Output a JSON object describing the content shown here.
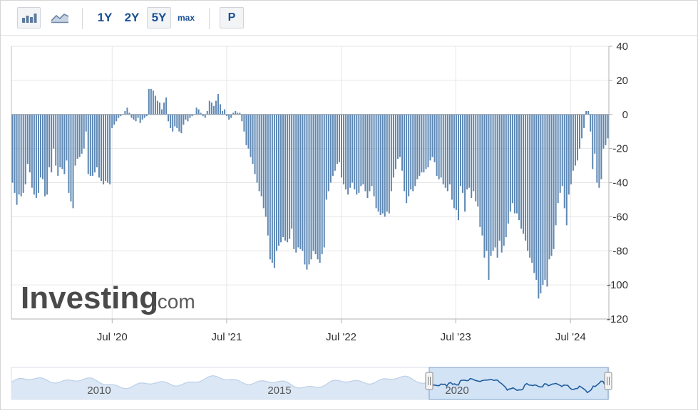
{
  "toolbar": {
    "icons": [
      "bar-chart-icon",
      "area-chart-icon"
    ],
    "ranges": [
      "1Y",
      "2Y",
      "5Y",
      "max"
    ],
    "selected_range": "5Y",
    "period_button": "P"
  },
  "chart_data": {
    "type": "bar",
    "title": "",
    "xlabel": "",
    "ylabel": "",
    "ylim": [
      -120,
      40
    ],
    "y_ticks": [
      40,
      20,
      0,
      -20,
      -40,
      -60,
      -80,
      -100,
      -120
    ],
    "y_axis_position": "right",
    "grid": true,
    "bar_color": "#5d87b3",
    "x_start": "2019-08-15",
    "x_end": "2024-10-31",
    "x_tick_dates": [
      "2020-07-01",
      "2021-07-01",
      "2022-07-01",
      "2023-07-01",
      "2024-07-01"
    ],
    "x_tick_labels": [
      "Jul '20",
      "Jul '21",
      "Jul '22",
      "Jul '23",
      "Jul '24"
    ],
    "values": [
      -40,
      -46,
      -53,
      -47,
      -48,
      -46,
      -41,
      -29,
      -34,
      -43,
      -47,
      -49,
      -46,
      -37,
      -38,
      -48,
      -47,
      -31,
      -34,
      -20,
      -30,
      -36,
      -31,
      -32,
      -35,
      -27,
      -46,
      -51,
      -55,
      -30,
      -26,
      -25,
      -23,
      -20,
      -10,
      -35,
      -36,
      -36,
      -34,
      -31,
      -37,
      -39,
      -41,
      -39,
      -40,
      -41,
      -8,
      -6,
      -4,
      -2,
      -1,
      0,
      2,
      4,
      1,
      -2,
      -3,
      -4,
      -2,
      -5,
      -3,
      -2,
      -1,
      15,
      15,
      14,
      11,
      8,
      7,
      3,
      7,
      10,
      -4,
      -8,
      -10,
      -7,
      -8,
      -10,
      -11,
      -6,
      -3,
      -4,
      -2,
      -1,
      0,
      4,
      3,
      1,
      -1,
      -2,
      2,
      8,
      7,
      5,
      8,
      12,
      6,
      2,
      3,
      -1,
      -3,
      -2,
      1,
      2,
      1,
      1,
      -4,
      -10,
      -18,
      -20,
      -25,
      -29,
      -35,
      -40,
      -45,
      -48,
      -55,
      -60,
      -71,
      -85,
      -87,
      -90,
      -80,
      -77,
      -75,
      -72,
      -74,
      -75,
      -73,
      -67,
      -79,
      -81,
      -78,
      -79,
      -80,
      -88,
      -91,
      -88,
      -85,
      -80,
      -82,
      -85,
      -87,
      -82,
      -78,
      -50,
      -45,
      -40,
      -36,
      -33,
      -29,
      -28,
      -37,
      -41,
      -44,
      -47,
      -43,
      -40,
      -44,
      -47,
      -46,
      -42,
      -41,
      -45,
      -49,
      -45,
      -42,
      -48,
      -55,
      -57,
      -59,
      -58,
      -60,
      -57,
      -58,
      -45,
      -37,
      -32,
      -26,
      -25,
      -33,
      -45,
      -52,
      -48,
      -44,
      -45,
      -42,
      -38,
      -36,
      -34,
      -34,
      -32,
      -31,
      -27,
      -25,
      -28,
      -36,
      -38,
      -37,
      -41,
      -43,
      -45,
      -41,
      -50,
      -55,
      -56,
      -62,
      -42,
      -46,
      -57,
      -44,
      -43,
      -49,
      -45,
      -51,
      -54,
      -66,
      -71,
      -84,
      -80,
      -97,
      -83,
      -80,
      -78,
      -84,
      -74,
      -81,
      -77,
      -72,
      -64,
      -57,
      -52,
      -58,
      -58,
      -62,
      -67,
      -70,
      -74,
      -80,
      -84,
      -87,
      -93,
      -97,
      -108,
      -105,
      -100,
      -97,
      -101,
      -85,
      -83,
      -79,
      -65,
      -52,
      -46,
      -42,
      -55,
      -65,
      -47,
      -41,
      -33,
      -30,
      -27,
      -20,
      -14,
      -8,
      2,
      2,
      -10,
      -32,
      -23,
      -40,
      -43,
      -38,
      -20,
      -18,
      -14
    ]
  },
  "navigator": {
    "year_labels": [
      "2010",
      "2015",
      "2020"
    ]
  },
  "watermark": "Investing.com"
}
